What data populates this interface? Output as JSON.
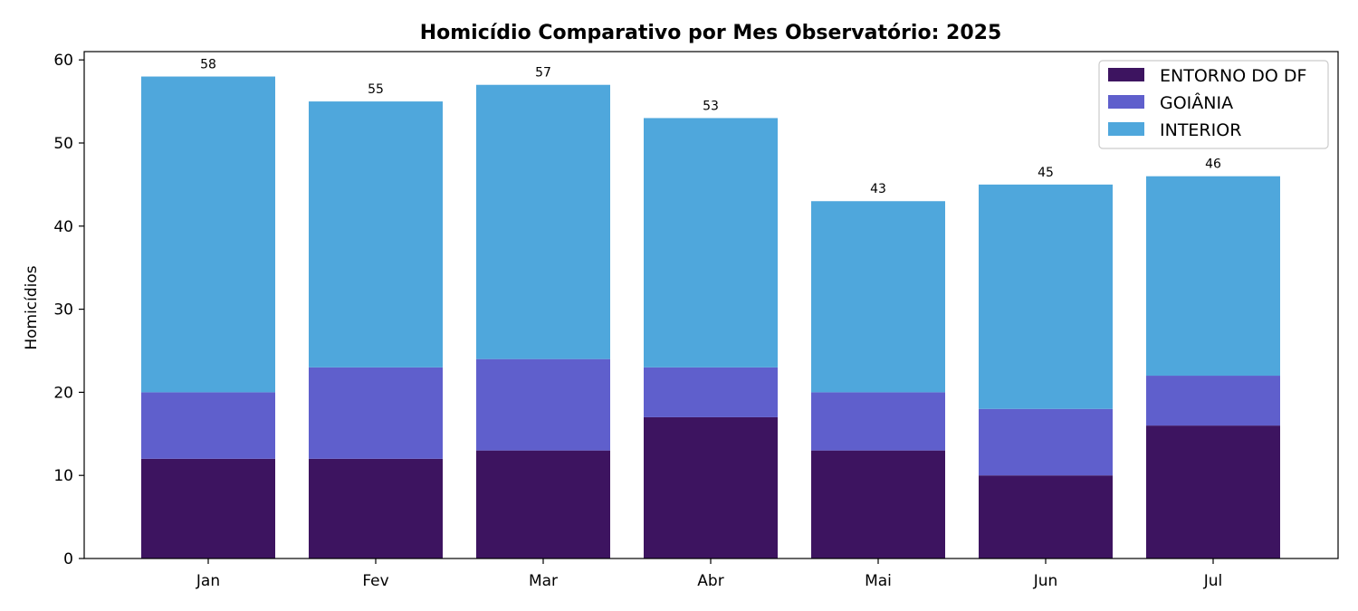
{
  "chart_data": {
    "type": "bar",
    "stacked": true,
    "title": "Homicídio Comparativo por Mes Observatório: 2025",
    "xlabel": "",
    "ylabel": "Homicídios",
    "categories": [
      "Jan",
      "Fev",
      "Mar",
      "Abr",
      "Mai",
      "Jun",
      "Jul"
    ],
    "series": [
      {
        "name": "ENTORNO DO DF",
        "color": "#3d1460",
        "values": [
          12,
          12,
          13,
          17,
          13,
          10,
          16
        ]
      },
      {
        "name": "GOIÂNIA",
        "color": "#5f5fcc",
        "values": [
          8,
          11,
          11,
          6,
          7,
          8,
          6
        ]
      },
      {
        "name": "INTERIOR",
        "color": "#4fa7dc",
        "values": [
          38,
          32,
          33,
          30,
          23,
          27,
          24
        ]
      }
    ],
    "totals": [
      58,
      55,
      57,
      53,
      43,
      45,
      46
    ],
    "ylim": [
      0,
      61
    ],
    "yticks": [
      0,
      10,
      20,
      30,
      40,
      50,
      60
    ],
    "grid": false,
    "legend_position": "top-right"
  }
}
